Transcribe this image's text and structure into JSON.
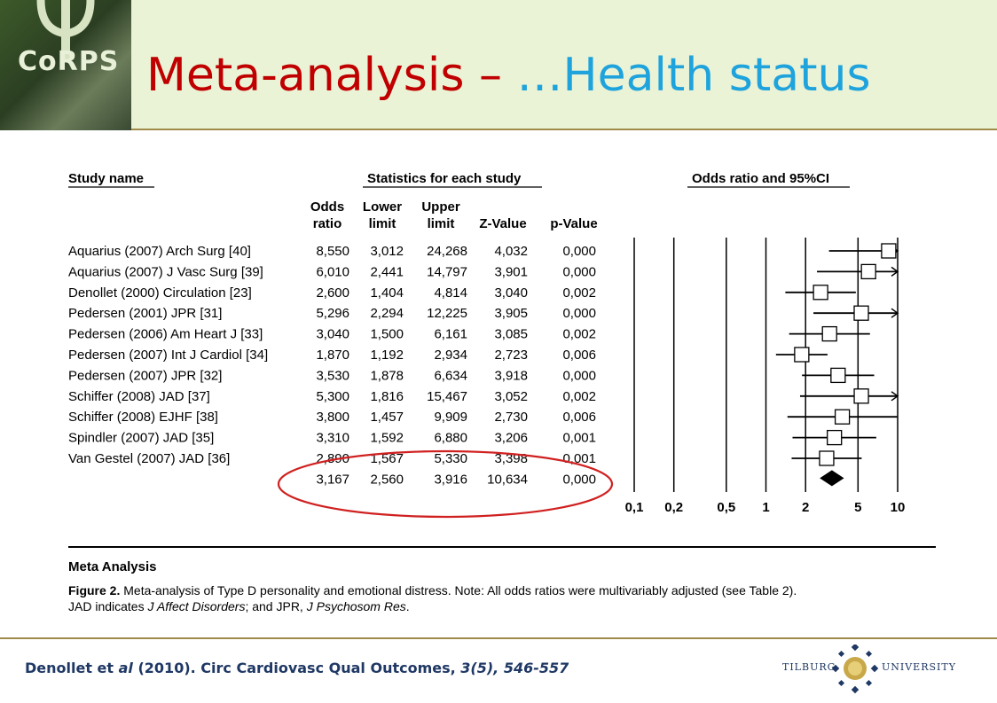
{
  "header": {
    "logo_text": "CoRPS",
    "title_part1": "Meta-analysis –",
    "title_part2": "…Health status"
  },
  "chart_data": {
    "type": "forest",
    "columns": {
      "study_name": "Study name",
      "statistics": "Statistics for each study",
      "odds_ratio_ci": "Odds ratio and 95%CI",
      "odds_1": "Odds",
      "odds_2": "ratio",
      "lower_1": "Lower",
      "lower_2": "limit",
      "upper_1": "Upper",
      "upper_2": "limit",
      "z": "Z-Value",
      "p": "p-Value"
    },
    "studies": [
      {
        "name": "Aquarius (2007) Arch Surg [40]",
        "or": "8,550",
        "lower": "3,012",
        "upper": "24,268",
        "z": "4,032",
        "p": "0,000",
        "or_v": 8.55,
        "lo_v": 3.012,
        "up_v": 24.268
      },
      {
        "name": "Aquarius (2007) J Vasc Surg [39]",
        "or": "6,010",
        "lower": "2,441",
        "upper": "14,797",
        "z": "3,901",
        "p": "0,000",
        "or_v": 6.01,
        "lo_v": 2.441,
        "up_v": 14.797
      },
      {
        "name": "Denollet (2000) Circulation [23]",
        "or": "2,600",
        "lower": "1,404",
        "upper": "4,814",
        "z": "3,040",
        "p": "0,002",
        "or_v": 2.6,
        "lo_v": 1.404,
        "up_v": 4.814
      },
      {
        "name": "Pedersen (2001) JPR [31]",
        "or": "5,296",
        "lower": "2,294",
        "upper": "12,225",
        "z": "3,905",
        "p": "0,000",
        "or_v": 5.296,
        "lo_v": 2.294,
        "up_v": 12.225
      },
      {
        "name": "Pedersen (2006) Am Heart J [33]",
        "or": "3,040",
        "lower": "1,500",
        "upper": "6,161",
        "z": "3,085",
        "p": "0,002",
        "or_v": 3.04,
        "lo_v": 1.5,
        "up_v": 6.161
      },
      {
        "name": "Pedersen (2007) Int J Cardiol [34]",
        "or": "1,870",
        "lower": "1,192",
        "upper": "2,934",
        "z": "2,723",
        "p": "0,006",
        "or_v": 1.87,
        "lo_v": 1.192,
        "up_v": 2.934
      },
      {
        "name": "Pedersen (2007) JPR [32]",
        "or": "3,530",
        "lower": "1,878",
        "upper": "6,634",
        "z": "3,918",
        "p": "0,000",
        "or_v": 3.53,
        "lo_v": 1.878,
        "up_v": 6.634
      },
      {
        "name": "Schiffer (2008) JAD [37]",
        "or": "5,300",
        "lower": "1,816",
        "upper": "15,467",
        "z": "3,052",
        "p": "0,002",
        "or_v": 5.3,
        "lo_v": 1.816,
        "up_v": 15.467
      },
      {
        "name": "Schiffer (2008) EJHF [38]",
        "or": "3,800",
        "lower": "1,457",
        "upper": "9,909",
        "z": "2,730",
        "p": "0,006",
        "or_v": 3.8,
        "lo_v": 1.457,
        "up_v": 9.909
      },
      {
        "name": "Spindler (2007) JAD [35]",
        "or": "3,310",
        "lower": "1,592",
        "upper": "6,880",
        "z": "3,206",
        "p": "0,001",
        "or_v": 3.31,
        "lo_v": 1.592,
        "up_v": 6.88
      },
      {
        "name": "Van Gestel (2007) JAD [36]",
        "or": "2,890",
        "lower": "1,567",
        "upper": "5,330",
        "z": "3,398",
        "p": "0,001",
        "or_v": 2.89,
        "lo_v": 1.567,
        "up_v": 5.33
      }
    ],
    "pooled": {
      "or": "3,167",
      "lower": "2,560",
      "upper": "3,916",
      "z": "10,634",
      "p": "0,000",
      "or_v": 3.167,
      "lo_v": 2.56,
      "up_v": 3.916
    },
    "x_ticks": [
      {
        "label": "0,1",
        "v": 0.1
      },
      {
        "label": "0,2",
        "v": 0.2
      },
      {
        "label": "0,5",
        "v": 0.5
      },
      {
        "label": "1",
        "v": 1
      },
      {
        "label": "2",
        "v": 2
      },
      {
        "label": "5",
        "v": 5
      },
      {
        "label": "10",
        "v": 10
      }
    ],
    "x_scale": "log",
    "xlim": [
      0.1,
      10
    ],
    "highlight_color": "#d02020",
    "footer_label": "Meta Analysis",
    "caption_bold": "Figure 2.",
    "caption_line1": " Meta-analysis of Type D personality and emotional distress. Note: All odds ratios were multivariably adjusted (see Table 2).",
    "caption_line2_a": "JAD indicates ",
    "caption_line2_b": "J Affect Disorders",
    "caption_line2_c": "; and JPR, ",
    "caption_line2_d": "J Psychosom Res",
    "caption_line2_e": "."
  },
  "footer": {
    "cite_1": "Denollet et ",
    "cite_2": "al",
    "cite_3": " (2010). Circ Cardiovasc Qual Outcomes, ",
    "cite_4": "3(5), 546-557",
    "university_1": "Tilburg",
    "university_2": "University"
  }
}
